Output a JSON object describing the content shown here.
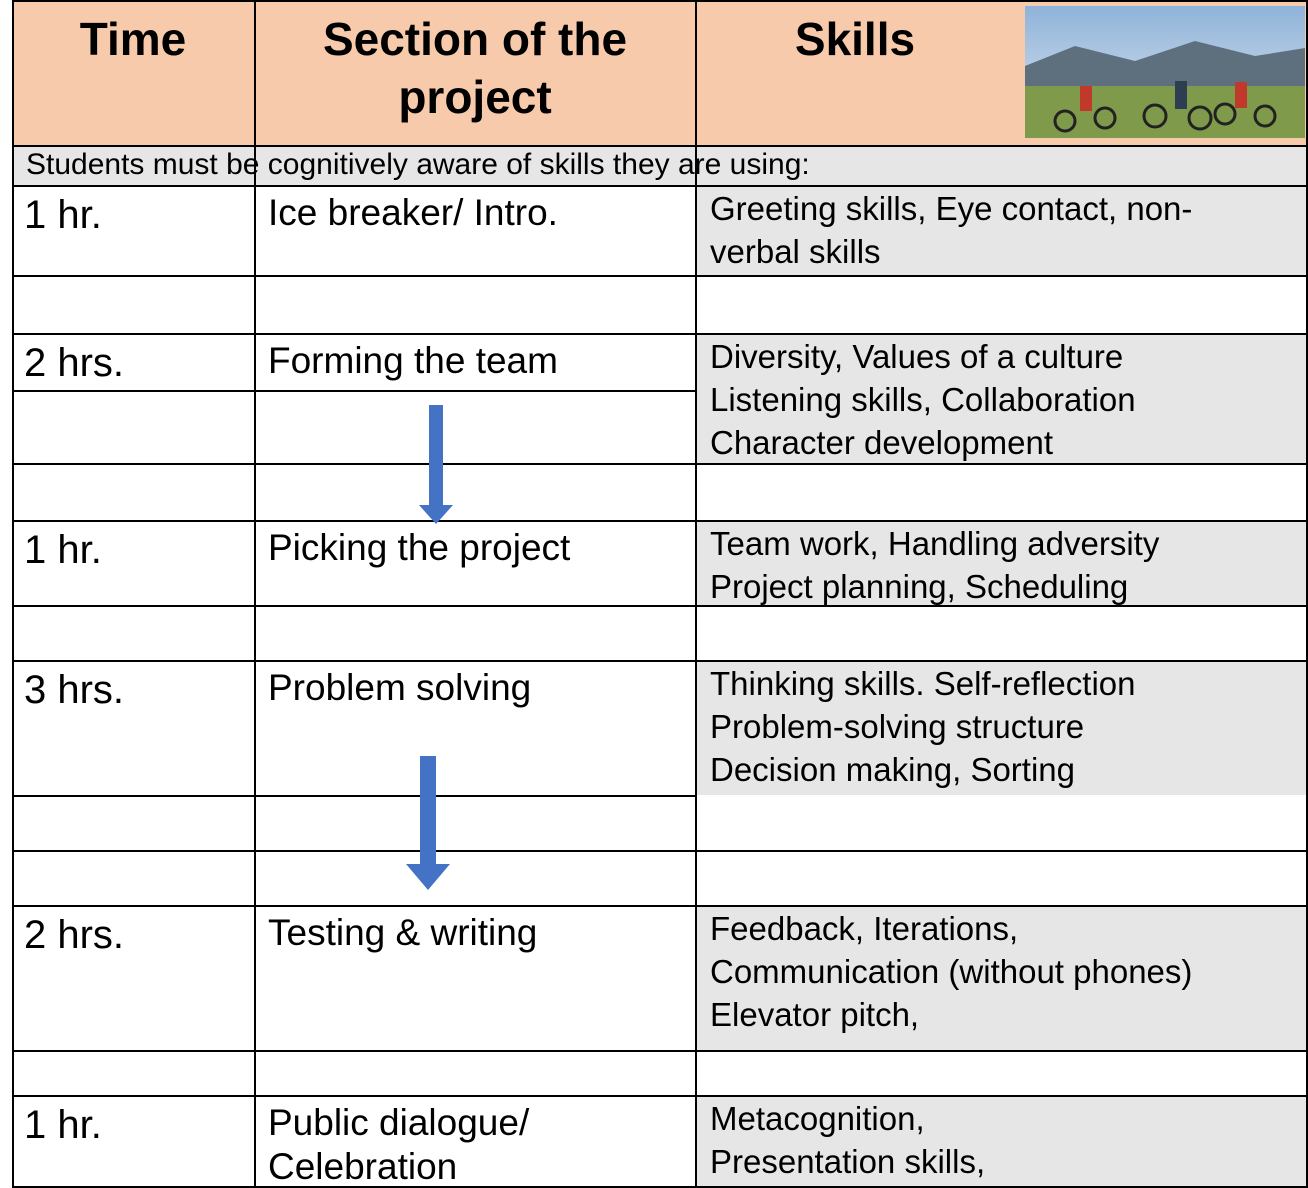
{
  "header": {
    "columns": [
      "Time",
      "Section of the project",
      "Skills"
    ]
  },
  "note": "Students must be cognitively aware of skills they are using:",
  "rows": [
    {
      "time": "1 hr.",
      "section": [
        "Ice breaker/ Intro."
      ],
      "skills": [
        "Greeting skills, Eye contact, non-",
        "verbal skills"
      ]
    },
    {
      "time": "2 hrs.",
      "section": [
        "Forming the team"
      ],
      "skills": [
        "Diversity, Values of a culture",
        "Listening skills, Collaboration",
        "Character development"
      ]
    },
    {
      "time": "1 hr.",
      "section": [
        "Picking the project"
      ],
      "skills": [
        "Team work, Handling adversity",
        "Project planning, Scheduling"
      ]
    },
    {
      "time": "3 hrs.",
      "section": [
        "Problem solving"
      ],
      "skills": [
        "Thinking skills. Self-reflection",
        "Problem-solving structure",
        "Decision making, Sorting"
      ]
    },
    {
      "time": "2 hrs.",
      "section": [
        "Testing & writing"
      ],
      "skills": [
        "Feedback, Iterations,",
        "Communication (without phones)",
        "Elevator pitch,"
      ]
    },
    {
      "time": "1 hr.",
      "section": [
        "Public dialogue/",
        "Celebration"
      ],
      "skills": [
        "Metacognition,",
        "Presentation skills,"
      ]
    }
  ]
}
